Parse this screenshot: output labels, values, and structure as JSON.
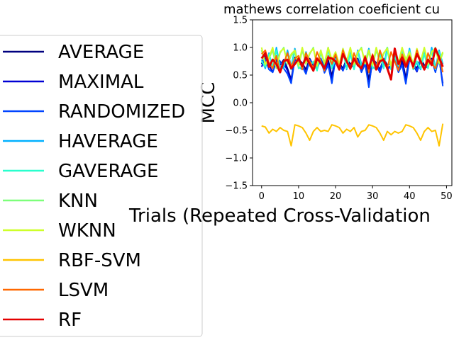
{
  "chart_data": {
    "type": "line",
    "title": "mathews correlation coeficient cu",
    "xlabel": "Trials (Repeated Cross-Validation",
    "ylabel": "MCC",
    "xlim": [
      -2.45,
      51.45
    ],
    "ylim": [
      -1.5,
      1.5
    ],
    "xticks": [
      0,
      10,
      20,
      30,
      40,
      50
    ],
    "yticks": [
      1.5,
      1.0,
      0.5,
      0.0,
      -0.5,
      -1.0,
      -1.5
    ],
    "ytick_labels": [
      "1.5",
      "1.0",
      "0.5",
      "0.0",
      "−0.5",
      "−1.0",
      "−1.5"
    ],
    "legend_position": "left",
    "x": [
      0,
      1,
      2,
      3,
      4,
      5,
      6,
      7,
      8,
      9,
      10,
      11,
      12,
      13,
      14,
      15,
      16,
      17,
      18,
      19,
      20,
      21,
      22,
      23,
      24,
      25,
      26,
      27,
      28,
      29,
      30,
      31,
      32,
      33,
      34,
      35,
      36,
      37,
      38,
      39,
      40,
      41,
      42,
      43,
      44,
      45,
      46,
      47,
      48,
      49
    ],
    "series": [
      {
        "name": "AVERAGE",
        "color": "#00007f",
        "values": [
          0.7,
          0.85,
          0.72,
          0.62,
          0.8,
          0.68,
          0.78,
          0.62,
          0.42,
          0.82,
          0.78,
          0.72,
          0.6,
          0.8,
          0.68,
          0.7,
          0.8,
          0.62,
          0.78,
          0.48,
          0.82,
          0.72,
          0.62,
          0.8,
          0.7,
          0.75,
          0.8,
          0.62,
          0.78,
          0.42,
          0.8,
          0.72,
          0.6,
          0.8,
          0.68,
          0.72,
          0.8,
          0.62,
          0.78,
          0.45,
          0.82,
          0.72,
          0.62,
          0.8,
          0.68,
          0.72,
          0.8,
          0.62,
          0.85,
          0.7
        ]
      },
      {
        "name": "MAXIMAL",
        "color": "#0000d4",
        "values": [
          0.65,
          0.8,
          0.68,
          0.55,
          0.75,
          0.62,
          0.72,
          0.58,
          0.4,
          0.78,
          0.74,
          0.66,
          0.55,
          0.76,
          0.62,
          0.66,
          0.75,
          0.56,
          0.72,
          0.42,
          0.78,
          0.68,
          0.58,
          0.76,
          0.64,
          0.7,
          0.76,
          0.56,
          0.72,
          0.32,
          0.76,
          0.68,
          0.55,
          0.76,
          0.62,
          0.68,
          0.76,
          0.56,
          0.72,
          0.4,
          0.78,
          0.68,
          0.56,
          0.76,
          0.62,
          0.68,
          0.76,
          0.58,
          0.8,
          0.35
        ]
      },
      {
        "name": "RANDOMIZED",
        "color": "#0044ff",
        "values": [
          0.72,
          0.78,
          0.6,
          0.55,
          0.82,
          0.75,
          0.62,
          0.52,
          0.35,
          0.8,
          0.72,
          0.66,
          0.52,
          0.78,
          0.7,
          0.6,
          0.8,
          0.54,
          0.68,
          0.35,
          0.8,
          0.7,
          0.58,
          0.78,
          0.65,
          0.66,
          0.78,
          0.55,
          0.7,
          0.28,
          0.78,
          0.7,
          0.56,
          0.8,
          0.6,
          0.66,
          0.78,
          0.55,
          0.68,
          0.34,
          0.8,
          0.7,
          0.58,
          0.78,
          0.62,
          0.66,
          0.78,
          0.55,
          0.82,
          0.3
        ]
      },
      {
        "name": "HAVERAGE",
        "color": "#00b0ff",
        "values": [
          0.78,
          0.62,
          0.9,
          0.62,
          1.0,
          0.65,
          0.62,
          0.95,
          0.65,
          0.98,
          0.65,
          0.6,
          0.92,
          0.7,
          0.72,
          0.62,
          0.95,
          0.68,
          1.0,
          0.65,
          0.8,
          0.62,
          0.98,
          0.6,
          0.9,
          0.62,
          0.95,
          0.7,
          0.72,
          0.98,
          0.65,
          0.6,
          0.92,
          0.65,
          1.0,
          0.62,
          0.85,
          0.65,
          0.95,
          0.68,
          0.98,
          0.62,
          0.72,
          0.6,
          0.9,
          0.65,
          1.0,
          0.62,
          0.95,
          0.7
        ]
      },
      {
        "name": "GAVERAGE",
        "color": "#29ffce",
        "values": [
          0.75,
          0.65,
          0.88,
          0.65,
          0.95,
          0.6,
          0.68,
          0.9,
          0.6,
          0.95,
          0.62,
          0.66,
          0.88,
          0.66,
          0.75,
          0.58,
          0.9,
          0.72,
          0.95,
          0.62,
          0.78,
          0.66,
          0.92,
          0.62,
          0.88,
          0.6,
          0.92,
          0.66,
          0.75,
          0.95,
          0.62,
          0.64,
          0.88,
          0.62,
          0.96,
          0.6,
          0.82,
          0.68,
          0.9,
          0.66,
          0.95,
          0.6,
          0.75,
          0.62,
          0.88,
          0.62,
          0.95,
          0.6,
          0.92,
          0.66
        ]
      },
      {
        "name": "KNN",
        "color": "#7dff7a",
        "values": [
          0.95,
          0.68,
          0.8,
          0.95,
          0.62,
          0.9,
          1.0,
          0.7,
          0.85,
          0.92,
          0.65,
          0.95,
          0.7,
          0.88,
          1.0,
          0.65,
          0.92,
          0.7,
          0.98,
          0.75,
          0.9,
          0.68,
          0.95,
          0.72,
          0.98,
          0.68,
          0.9,
          1.0,
          0.7,
          0.92,
          0.66,
          0.95,
          0.72,
          0.88,
          1.0,
          0.65,
          0.92,
          0.7,
          0.98,
          0.75,
          0.9,
          0.68,
          0.95,
          0.72,
          0.98,
          0.68,
          0.9,
          1.0,
          0.7,
          0.9
        ]
      },
      {
        "name": "WKNN",
        "color": "#ceff29",
        "values": [
          1.0,
          0.7,
          0.82,
          1.0,
          0.65,
          0.92,
          0.98,
          0.72,
          0.88,
          0.95,
          0.68,
          1.0,
          0.72,
          0.9,
          0.98,
          0.68,
          0.95,
          0.72,
          1.0,
          0.78,
          0.92,
          0.7,
          0.98,
          0.75,
          1.0,
          0.7,
          0.92,
          0.98,
          0.72,
          0.95,
          0.68,
          1.0,
          0.75,
          0.9,
          0.98,
          0.68,
          0.95,
          0.72,
          1.0,
          0.78,
          0.92,
          0.7,
          0.98,
          0.75,
          1.0,
          0.7,
          0.92,
          0.98,
          0.72,
          0.92
        ]
      },
      {
        "name": "RBF-SVM",
        "color": "#ffc400",
        "values": [
          -0.42,
          -0.44,
          -0.55,
          -0.48,
          -0.52,
          -0.45,
          -0.5,
          -0.52,
          -0.78,
          -0.4,
          -0.42,
          -0.45,
          -0.55,
          -0.68,
          -0.52,
          -0.45,
          -0.52,
          -0.5,
          -0.52,
          -0.4,
          -0.42,
          -0.45,
          -0.55,
          -0.48,
          -0.52,
          -0.45,
          -0.62,
          -0.52,
          -0.5,
          -0.4,
          -0.42,
          -0.45,
          -0.55,
          -0.68,
          -0.52,
          -0.58,
          -0.52,
          -0.55,
          -0.52,
          -0.4,
          -0.42,
          -0.45,
          -0.55,
          -0.68,
          -0.52,
          -0.45,
          -0.52,
          -0.5,
          -0.78,
          -0.38
        ]
      },
      {
        "name": "LSVM",
        "color": "#ff6800",
        "values": [
          0.88,
          0.95,
          0.72,
          0.62,
          0.85,
          0.55,
          0.72,
          0.9,
          0.65,
          0.8,
          0.85,
          0.6,
          0.9,
          0.75,
          0.62,
          0.92,
          0.75,
          0.58,
          0.85,
          0.7,
          0.88,
          0.62,
          0.95,
          0.75,
          0.6,
          0.9,
          0.72,
          0.62,
          0.85,
          0.55,
          0.88,
          0.62,
          0.95,
          0.75,
          0.62,
          0.92,
          0.75,
          0.58,
          0.88,
          0.7,
          0.85,
          0.62,
          0.95,
          0.75,
          0.6,
          0.9,
          0.72,
          0.62,
          0.85,
          0.55
        ]
      },
      {
        "name": "RF",
        "color": "#e40000",
        "values": [
          0.8,
          0.9,
          0.65,
          0.78,
          0.7,
          0.55,
          0.75,
          0.78,
          0.62,
          0.7,
          0.8,
          0.66,
          0.82,
          0.7,
          0.58,
          0.8,
          0.72,
          0.62,
          0.82,
          0.8,
          0.75,
          0.6,
          0.88,
          0.75,
          0.62,
          0.8,
          0.68,
          0.62,
          0.82,
          0.62,
          0.85,
          0.6,
          0.75,
          0.78,
          0.62,
          0.42,
          0.98,
          0.7,
          0.82,
          0.65,
          0.82,
          0.66,
          0.88,
          0.75,
          0.6,
          0.78,
          0.68,
          0.98,
          0.82,
          0.65
        ]
      }
    ]
  }
}
